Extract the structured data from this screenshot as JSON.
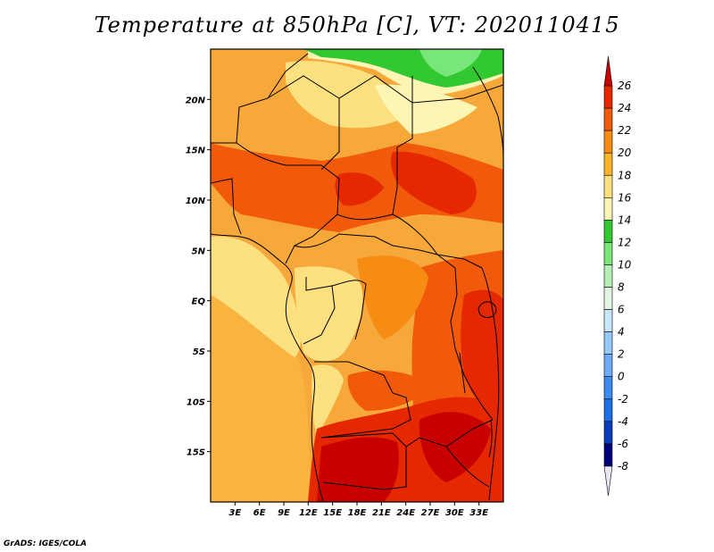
{
  "title": "Temperature at 850hPa [C], VT: 2020110415",
  "credit": "GrADS: IGES/COLA",
  "map": {
    "lon_range": [
      0,
      36
    ],
    "lat_range": [
      -20,
      25
    ],
    "lon_ticks": [
      {
        "value": 3,
        "label": "3E"
      },
      {
        "value": 6,
        "label": "6E"
      },
      {
        "value": 9,
        "label": "9E"
      },
      {
        "value": 12,
        "label": "12E"
      },
      {
        "value": 15,
        "label": "15E"
      },
      {
        "value": 18,
        "label": "18E"
      },
      {
        "value": 21,
        "label": "21E"
      },
      {
        "value": 24,
        "label": "24E"
      },
      {
        "value": 27,
        "label": "27E"
      },
      {
        "value": 30,
        "label": "30E"
      },
      {
        "value": 33,
        "label": "33E"
      }
    ],
    "lat_ticks": [
      {
        "value": 20,
        "label": "20N"
      },
      {
        "value": 15,
        "label": "15N"
      },
      {
        "value": 10,
        "label": "10N"
      },
      {
        "value": 5,
        "label": "5N"
      },
      {
        "value": 0,
        "label": "EQ"
      },
      {
        "value": -5,
        "label": "5S"
      },
      {
        "value": -10,
        "label": "10S"
      },
      {
        "value": -15,
        "label": "15S"
      }
    ]
  },
  "colorbar": {
    "levels": [
      "26",
      "24",
      "22",
      "20",
      "18",
      "16",
      "14",
      "12",
      "10",
      "8",
      "6",
      "4",
      "2",
      "0",
      "-2",
      "-4",
      "-6",
      "-8"
    ],
    "colors": [
      "#c80000",
      "#e62800",
      "#f05a0a",
      "#f78c14",
      "#fbb428",
      "#fde080",
      "#fdf5b4",
      "#32c832",
      "#78e678",
      "#b4f0b4",
      "#e1f5e1",
      "#c8e6fa",
      "#96c8fa",
      "#6eaaf5",
      "#3c8cf0",
      "#1e6ee6",
      "#0a3cbe",
      "#000078",
      "#e6e6f5"
    ]
  },
  "colors": {
    "ocean": "#fbb938",
    "border": "#000000"
  }
}
